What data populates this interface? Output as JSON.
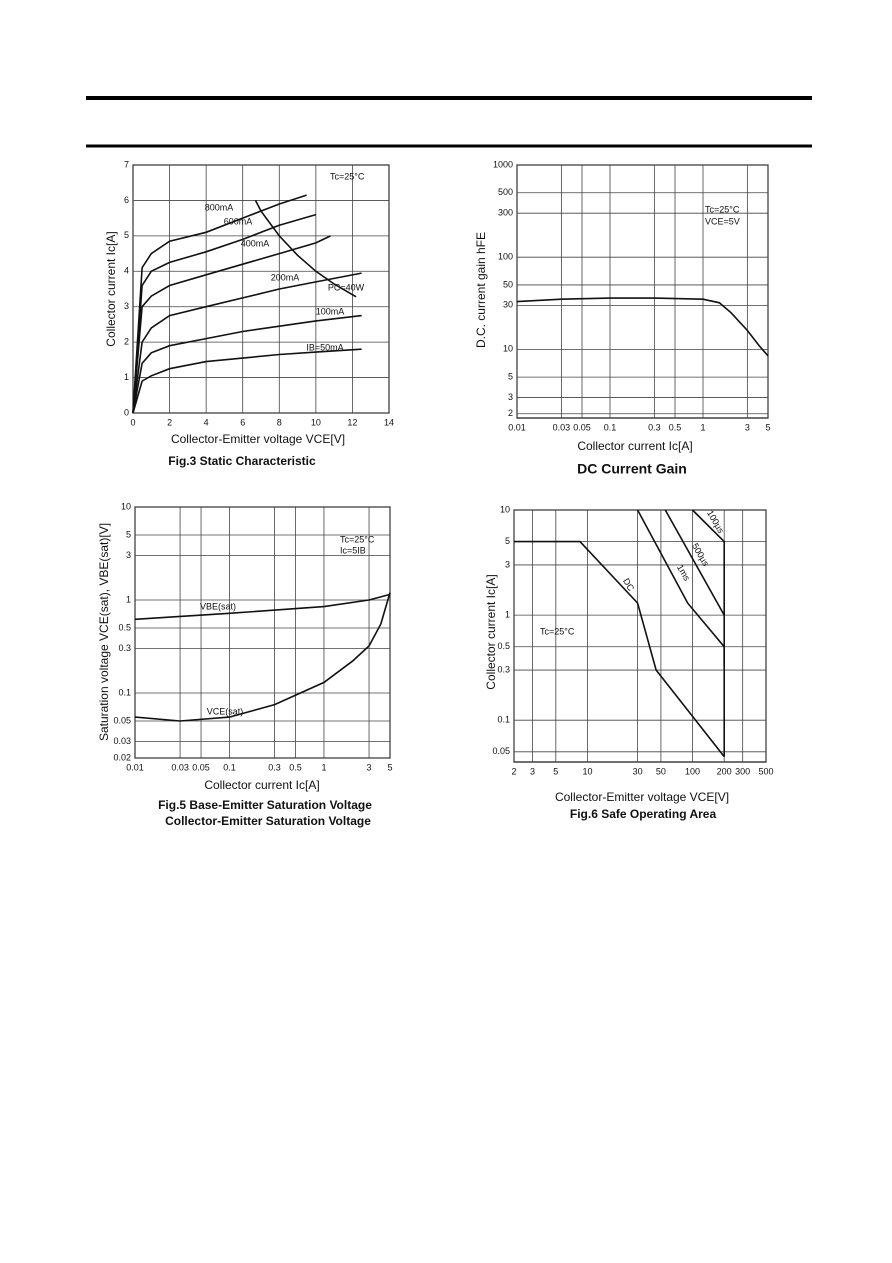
{
  "chart_data": [
    {
      "type": "line",
      "title": "Fig.3 Static Characteristic",
      "x_label": "Collector-Emitter voltage VCE[V]",
      "y_label": "Collector current   Ic[A]",
      "xscale": "linear",
      "yscale": "linear",
      "xlim": [
        0,
        14
      ],
      "ylim": [
        0,
        7
      ],
      "xticks": [
        0,
        2,
        4,
        6,
        8,
        10,
        12,
        14
      ],
      "yticks": [
        0,
        1,
        2,
        3,
        4,
        5,
        6,
        7
      ],
      "grid": true,
      "annotations": [
        "Tc=25°C"
      ],
      "series": [
        {
          "name": "800mA",
          "color": "#111111",
          "x": [
            0,
            0.5,
            1,
            2,
            4,
            6,
            8,
            9.5
          ],
          "values": [
            0,
            4.1,
            4.5,
            4.85,
            5.1,
            5.5,
            5.9,
            6.15
          ]
        },
        {
          "name": "600mA",
          "color": "#111111",
          "x": [
            0,
            0.5,
            1,
            2,
            4,
            6,
            8,
            10
          ],
          "values": [
            0,
            3.6,
            4.0,
            4.25,
            4.55,
            4.9,
            5.3,
            5.6
          ]
        },
        {
          "name": "400mA",
          "color": "#111111",
          "x": [
            0,
            0.5,
            1,
            2,
            4,
            6,
            8,
            10,
            10.8
          ],
          "values": [
            0,
            3.0,
            3.3,
            3.6,
            3.9,
            4.2,
            4.5,
            4.8,
            5.0
          ]
        },
        {
          "name": "200mA",
          "color": "#111111",
          "x": [
            0,
            0.5,
            1,
            2,
            4,
            6,
            8,
            10,
            12.5
          ],
          "values": [
            0,
            2.0,
            2.4,
            2.75,
            3.0,
            3.25,
            3.5,
            3.7,
            3.95
          ]
        },
        {
          "name": "100mA",
          "color": "#111111",
          "x": [
            0,
            0.5,
            1,
            2,
            4,
            6,
            8,
            10,
            12.5
          ],
          "values": [
            0,
            1.4,
            1.7,
            1.9,
            2.1,
            2.3,
            2.45,
            2.6,
            2.75
          ]
        },
        {
          "name": "IB=50mA",
          "color": "#111111",
          "x": [
            0,
            0.5,
            1,
            2,
            4,
            6,
            8,
            10,
            12.5
          ],
          "values": [
            0,
            0.9,
            1.05,
            1.25,
            1.45,
            1.55,
            1.65,
            1.72,
            1.8
          ]
        },
        {
          "name": "PC=40W",
          "color": "#111111",
          "x": [
            6.7,
            7,
            8,
            9,
            10,
            11,
            12.2
          ],
          "values": [
            6.0,
            5.7,
            5.0,
            4.45,
            4.0,
            3.64,
            3.28
          ]
        }
      ]
    },
    {
      "type": "line",
      "title": "DC Current Gain",
      "x_label": "Collector current   Ic[A]",
      "y_label": "D.C. current gain   hFE",
      "xscale": "log",
      "yscale": "log",
      "xlim": [
        0.01,
        5
      ],
      "ylim": [
        1.8,
        1000
      ],
      "xticks": [
        0.01,
        0.03,
        0.05,
        0.1,
        0.3,
        0.5,
        1,
        3,
        5
      ],
      "yticks": [
        2,
        3,
        5,
        10,
        30,
        50,
        100,
        300,
        500,
        1000
      ],
      "grid": true,
      "annotations": [
        "Tc=25°C",
        "VCE=5V"
      ],
      "series": [
        {
          "name": "hFE",
          "color": "#111111",
          "x": [
            0.01,
            0.03,
            0.1,
            0.3,
            1,
            1.5,
            2,
            3,
            4,
            5
          ],
          "values": [
            33,
            35,
            36,
            36,
            35,
            32,
            25,
            16,
            11,
            8.5
          ]
        }
      ]
    },
    {
      "type": "line",
      "title": "Fig.5 Base-Emitter Saturation Voltage",
      "subtitle": "Collector-Emitter Saturation Voltage",
      "x_label": "Collector current   Ic[A]",
      "y_label": "Saturation voltage   VCE(sat), VBE(sat)[V]",
      "xscale": "log",
      "yscale": "log",
      "xlim": [
        0.01,
        5
      ],
      "ylim": [
        0.02,
        10
      ],
      "xticks": [
        0.01,
        0.03,
        0.05,
        0.1,
        0.3,
        0.5,
        1,
        3,
        5
      ],
      "yticks": [
        0.02,
        0.03,
        0.05,
        0.1,
        0.3,
        0.5,
        1,
        3,
        5,
        10
      ],
      "grid": true,
      "annotations": [
        "Tc=25°C",
        "Ic=5IB"
      ],
      "series": [
        {
          "name": "VBE(sat)",
          "color": "#111111",
          "x": [
            0.01,
            0.1,
            1,
            3,
            5
          ],
          "values": [
            0.62,
            0.72,
            0.85,
            1.0,
            1.15
          ]
        },
        {
          "name": "VCE(sat)",
          "color": "#111111",
          "x": [
            0.01,
            0.03,
            0.1,
            0.3,
            1,
            2,
            3,
            4,
            5
          ],
          "values": [
            0.055,
            0.05,
            0.055,
            0.075,
            0.13,
            0.22,
            0.32,
            0.55,
            1.2
          ]
        }
      ]
    },
    {
      "type": "line",
      "title": "Fig.6  Safe Operating Area",
      "x_label": "Collector-Emitter voltage VCE[V]",
      "y_label": "Collector current   Ic[A]",
      "xscale": "log",
      "yscale": "log",
      "xlim": [
        2,
        500
      ],
      "ylim": [
        0.04,
        10
      ],
      "xticks": [
        2,
        3,
        5,
        10,
        30,
        50,
        100,
        200,
        300,
        500
      ],
      "yticks": [
        0.05,
        0.1,
        0.3,
        0.5,
        1,
        3,
        5,
        10
      ],
      "grid": true,
      "annotations": [
        "Tc=25°C"
      ],
      "series": [
        {
          "name": "DC",
          "color": "#111111",
          "x": [
            2,
            8.5,
            30,
            45,
            200
          ],
          "values": [
            5,
            5,
            1.3,
            0.3,
            0.045
          ]
        },
        {
          "name": "1ms",
          "color": "#111111",
          "x": [
            30,
            90,
            200,
            200
          ],
          "values": [
            10,
            1.3,
            0.5,
            0.33
          ]
        },
        {
          "name": "500µs",
          "color": "#111111",
          "x": [
            55,
            200
          ],
          "values": [
            10,
            1.0
          ]
        },
        {
          "name": "100µs",
          "color": "#111111",
          "x": [
            100,
            200,
            200
          ],
          "values": [
            10,
            5,
            0.045
          ]
        }
      ]
    }
  ]
}
